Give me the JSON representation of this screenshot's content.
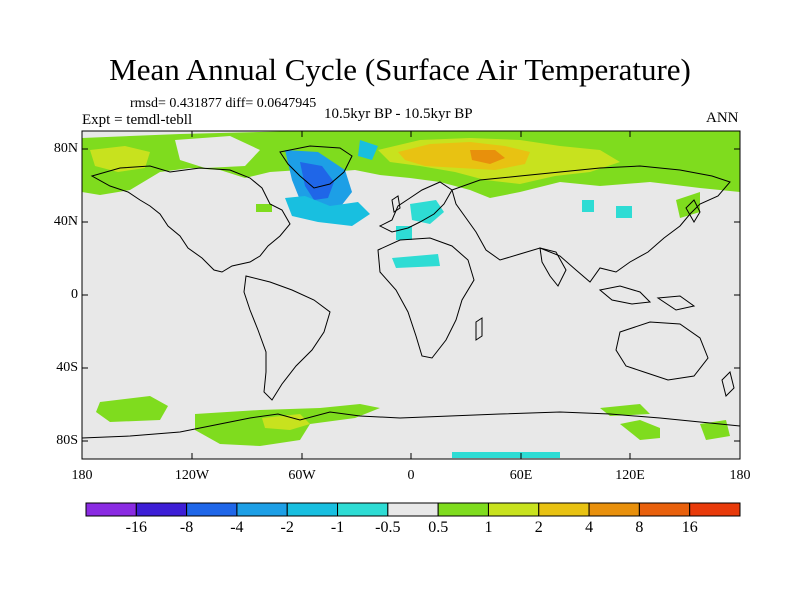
{
  "title": "Mean Annual Cycle (Surface Air Temperature)",
  "stats": "rmsd= 0.431877 diff= 0.0647945",
  "experiment": "Expt = temdl-tebll",
  "period": "10.5kyr BP - 10.5kyr BP",
  "season": "ANN",
  "lat_labels": [
    "80N",
    "40N",
    "0",
    "40S",
    "80S"
  ],
  "lon_labels": [
    "180",
    "120W",
    "60W",
    "0",
    "60E",
    "120E",
    "180"
  ],
  "colorbar": {
    "labels": [
      "-16",
      "-8",
      "-4",
      "-2",
      "-1",
      "-0.5",
      "0.5",
      "1",
      "2",
      "4",
      "8",
      "16"
    ],
    "colors": [
      "#8a2be2",
      "#3d1ed6",
      "#1f66e8",
      "#1d9fe6",
      "#18bfe0",
      "#2edcd4",
      "#e8e8e8",
      "#7fdc1e",
      "#c8e21e",
      "#e8c212",
      "#e8900c",
      "#e8600c",
      "#e83a0a"
    ]
  },
  "colors": {
    "background": "#e8e8e8",
    "land_border": "#000000"
  }
}
